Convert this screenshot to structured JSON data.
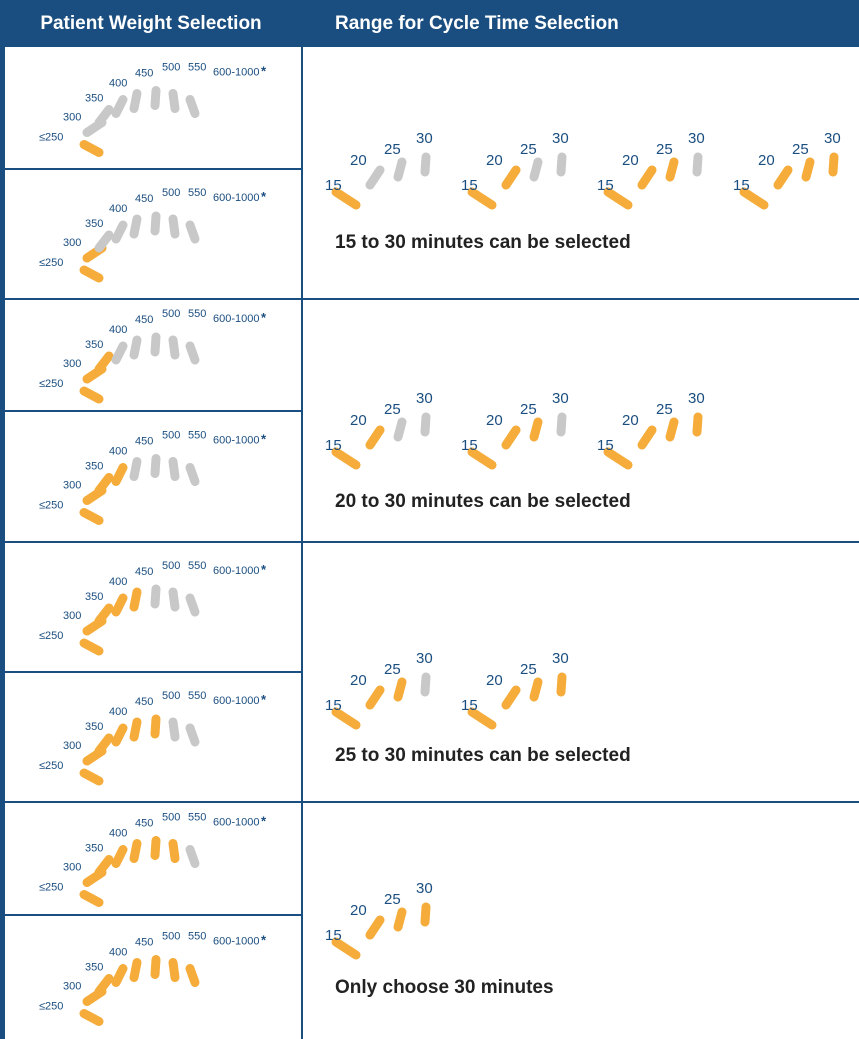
{
  "header": {
    "left_title": "Patient Weight Selection",
    "right_title": "Range for Cycle Time Selection"
  },
  "colors": {
    "header_bg": "#1b4e80",
    "active": "#f6ac3b",
    "inactive": "#c8c8c8",
    "label": "#1b4e80"
  },
  "weight_labels": [
    "≤250",
    "300",
    "350",
    "400",
    "450",
    "500",
    "550",
    "600-1000"
  ],
  "weight_star": "*",
  "cycle_labels": [
    "15",
    "20",
    "25",
    "30"
  ],
  "weight_panels": [
    {
      "active": 1
    },
    {
      "active": 2
    },
    {
      "active": 3
    },
    {
      "active": 4
    },
    {
      "active": 5
    },
    {
      "active": 6
    },
    {
      "active": 7
    },
    {
      "active": 8
    }
  ],
  "groups": [
    {
      "caption": "15 to 30 minutes can be selected",
      "dials": [
        1,
        2,
        3,
        4
      ]
    },
    {
      "caption": "20 to 30 minutes can be selected",
      "dials": [
        2,
        3,
        4
      ]
    },
    {
      "caption": "25 to 30 minutes can be selected",
      "dials": [
        3,
        4
      ]
    },
    {
      "caption": "Only choose 30 minutes",
      "dials": [
        4
      ]
    }
  ]
}
